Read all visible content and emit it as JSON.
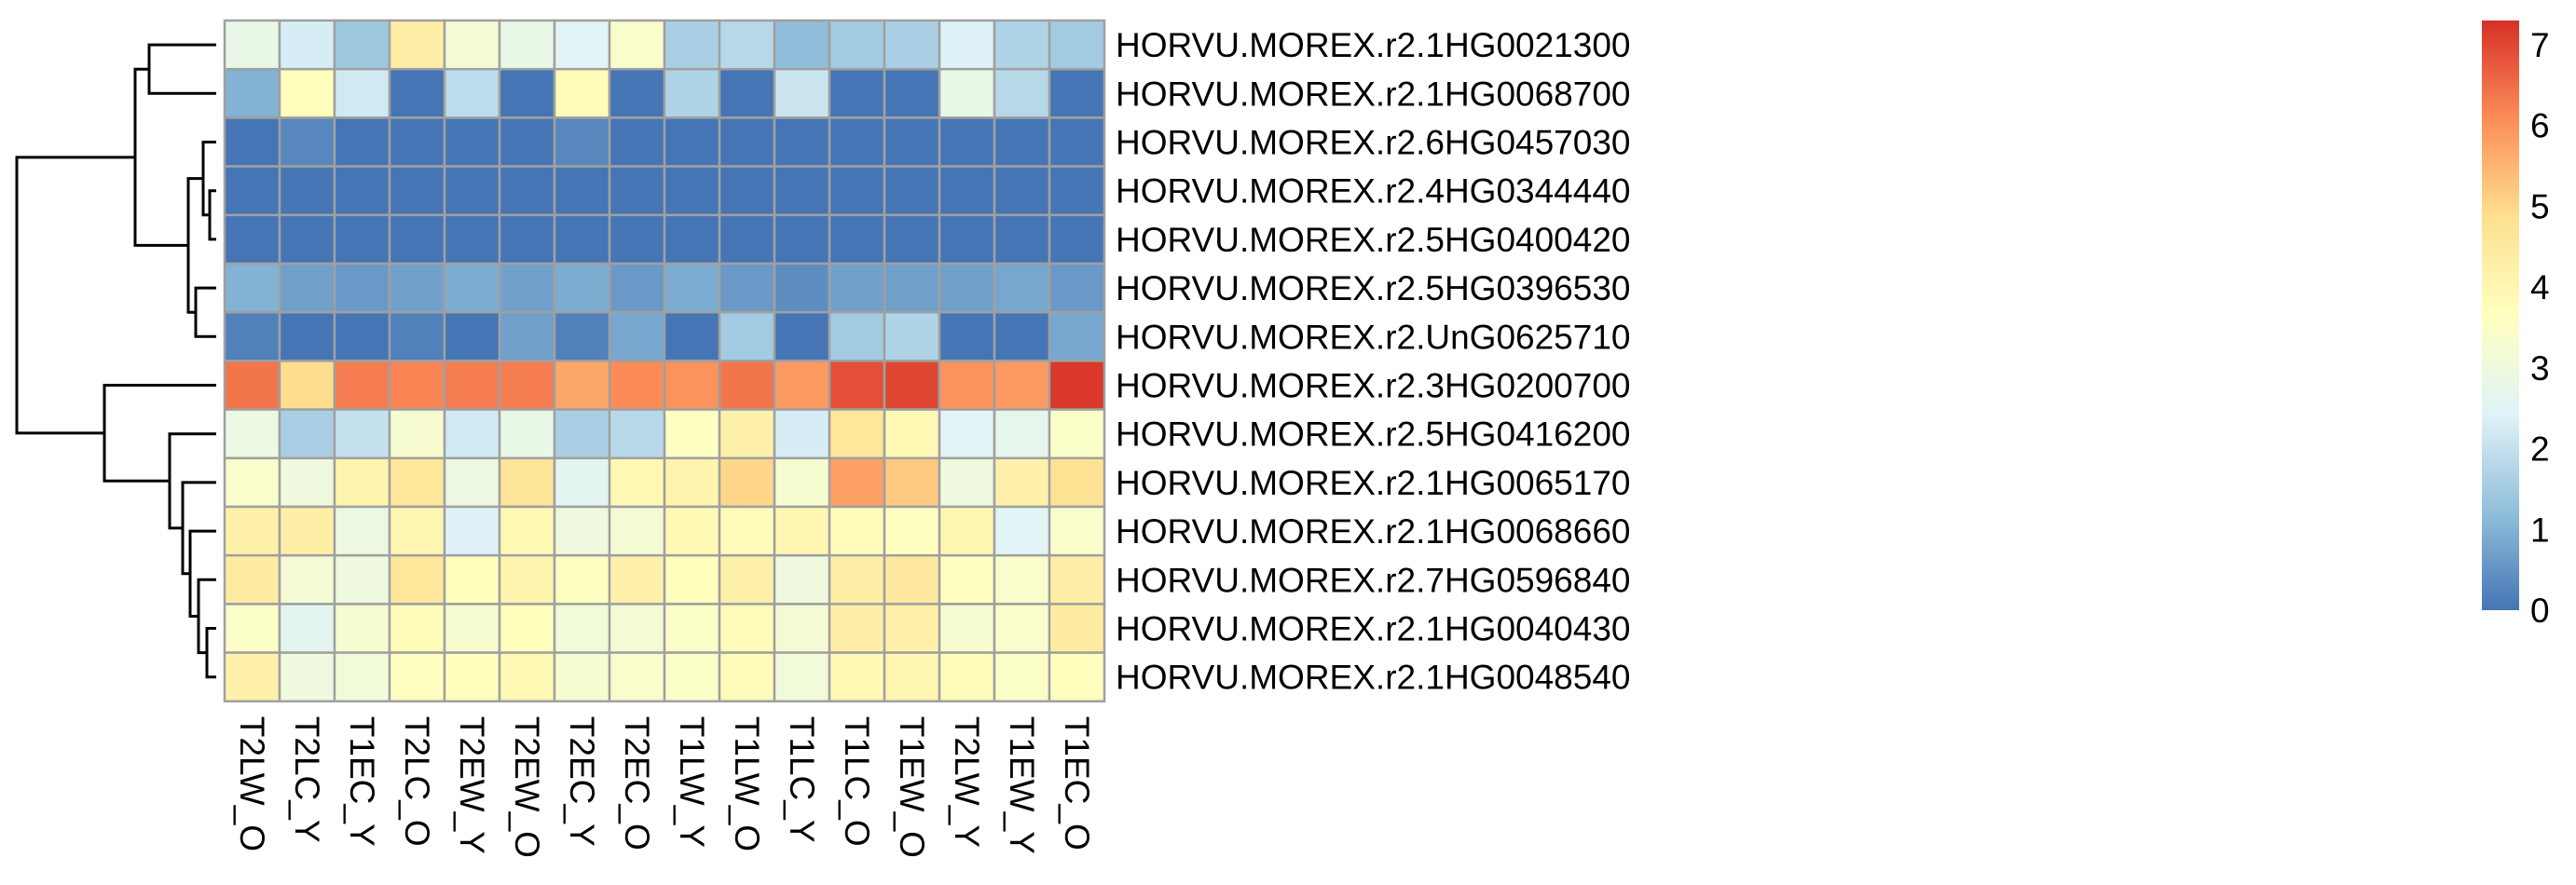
{
  "chart_data": {
    "type": "heatmap",
    "title": "",
    "rows": [
      "HORVU.MOREX.r2.1HG0021300",
      "HORVU.MOREX.r2.1HG0068700",
      "HORVU.MOREX.r2.6HG0457030",
      "HORVU.MOREX.r2.4HG0344440",
      "HORVU.MOREX.r2.5HG0400420",
      "HORVU.MOREX.r2.5HG0396530",
      "HORVU.MOREX.r2.UnG0625710",
      "HORVU.MOREX.r2.3HG0200700",
      "HORVU.MOREX.r2.5HG0416200",
      "HORVU.MOREX.r2.1HG0065170",
      "HORVU.MOREX.r2.1HG0068660",
      "HORVU.MOREX.r2.7HG0596840",
      "HORVU.MOREX.r2.1HG0040430",
      "HORVU.MOREX.r2.1HG0048540"
    ],
    "columns": [
      "T2LW_O",
      "T2LC_Y",
      "T1EC_Y",
      "T2LC_O",
      "T2EW_Y",
      "T2EW_O",
      "T2EC_Y",
      "T2EC_O",
      "T1LW_Y",
      "T1LW_O",
      "T1LC_Y",
      "T1LC_O",
      "T1EW_O",
      "T2LW_Y",
      "T1EW_Y",
      "T1EC_O"
    ],
    "values": [
      [
        2.8,
        2.3,
        1.4,
        4.3,
        3.2,
        2.8,
        2.5,
        3.4,
        1.6,
        1.8,
        1.2,
        1.5,
        1.6,
        2.4,
        1.7,
        1.5
      ],
      [
        1.0,
        3.7,
        2.2,
        0.0,
        1.9,
        0.0,
        3.8,
        0.0,
        1.7,
        0.0,
        2.1,
        0.0,
        0.0,
        2.8,
        1.8,
        0.0
      ],
      [
        0.0,
        0.3,
        0.0,
        0.0,
        0.0,
        0.0,
        0.3,
        0.0,
        0.0,
        0.0,
        0.0,
        0.0,
        0.0,
        0.0,
        0.0,
        0.0
      ],
      [
        0.0,
        0.0,
        0.0,
        0.0,
        0.0,
        0.0,
        0.0,
        0.0,
        0.0,
        0.0,
        0.0,
        0.0,
        0.0,
        0.0,
        0.0,
        0.0
      ],
      [
        0.0,
        0.0,
        0.0,
        0.0,
        0.0,
        0.0,
        0.0,
        0.0,
        0.0,
        0.0,
        0.0,
        0.0,
        0.0,
        0.0,
        0.0,
        0.0
      ],
      [
        1.0,
        0.7,
        0.6,
        0.7,
        0.9,
        0.7,
        0.9,
        0.6,
        0.9,
        0.6,
        0.4,
        0.7,
        0.7,
        0.7,
        0.8,
        0.6
      ],
      [
        0.2,
        0.0,
        0.0,
        0.2,
        0.0,
        0.7,
        0.2,
        0.8,
        0.0,
        1.5,
        0.0,
        1.5,
        1.7,
        0.0,
        0.0,
        0.8
      ],
      [
        6.4,
        4.9,
        6.3,
        6.2,
        6.3,
        6.3,
        5.7,
        6.1,
        6.0,
        6.4,
        5.9,
        6.9,
        7.0,
        6.0,
        5.9,
        7.2
      ],
      [
        2.9,
        1.6,
        2.0,
        3.3,
        2.2,
        2.8,
        1.6,
        1.8,
        3.6,
        4.2,
        2.3,
        4.6,
        3.9,
        2.5,
        2.7,
        3.5
      ],
      [
        3.4,
        3.0,
        4.1,
        4.6,
        2.9,
        4.7,
        2.6,
        3.9,
        4.1,
        5.0,
        3.3,
        5.8,
        5.2,
        3.0,
        4.2,
        4.8
      ],
      [
        4.2,
        4.3,
        2.9,
        4.0,
        2.4,
        3.9,
        3.0,
        3.2,
        3.9,
        3.8,
        4.0,
        3.8,
        3.6,
        4.0,
        2.5,
        3.4
      ],
      [
        4.4,
        3.2,
        3.0,
        4.6,
        3.7,
        4.1,
        3.6,
        4.2,
        3.7,
        4.2,
        3.0,
        4.3,
        4.5,
        3.6,
        3.4,
        4.3
      ],
      [
        3.5,
        2.6,
        3.3,
        3.8,
        3.3,
        3.7,
        3.1,
        3.2,
        3.5,
        3.8,
        3.2,
        4.3,
        4.2,
        3.3,
        3.4,
        4.4
      ],
      [
        4.2,
        3.0,
        3.1,
        3.6,
        3.7,
        3.9,
        3.3,
        3.4,
        3.5,
        3.8,
        3.1,
        3.9,
        4.0,
        3.8,
        3.5,
        3.7
      ]
    ],
    "scale": {
      "min": 0,
      "max": 7.3,
      "ticks": [
        0,
        1,
        2,
        3,
        4,
        5,
        6,
        7
      ],
      "colors": [
        "#4575b4",
        "#91bfdb",
        "#e0f3f8",
        "#ffffbf",
        "#fee090",
        "#fc8d59",
        "#d73027"
      ]
    },
    "cell_border_color": "#a0a0a0",
    "row_dendrogram": "left",
    "legend_position": "right"
  }
}
